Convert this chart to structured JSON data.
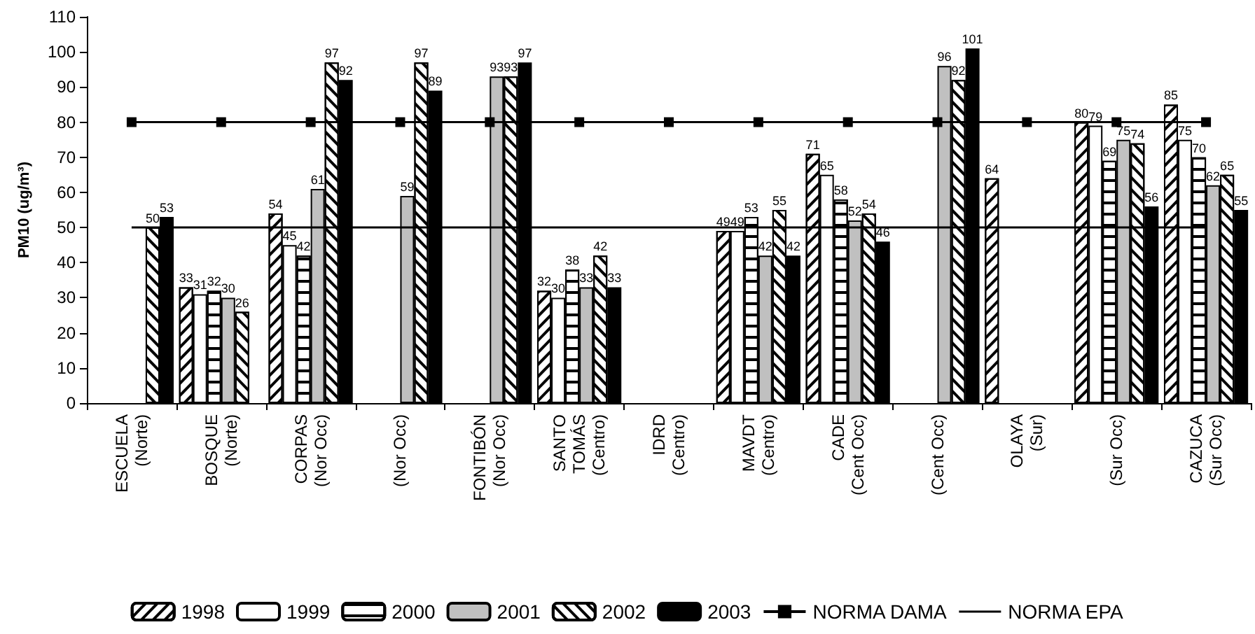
{
  "chart_data": {
    "type": "bar",
    "ylabel": "PM10 (ug/m³)",
    "categories": [
      "ESCUELA\n(Norte)",
      "BOSQUE\n(Norte)",
      "CORPAS\n(Nor Occ)",
      "(Nor Occ)",
      "FONTIBÓN\n(Nor Occ)",
      "SANTO\nTOMÁS\n(Centro)",
      "IDRD\n(Centro)",
      "MAVDT\n(Centro)",
      "CADE\n(Cent Occ)",
      "(Cent Occ)",
      "OLAYA\n(Sur)",
      "(Sur Occ)",
      "CAZUCA\n(Sur Occ)"
    ],
    "series": [
      {
        "name": "1998",
        "color": "#ffffff",
        "values": [
          null,
          33,
          54,
          null,
          null,
          32,
          null,
          49,
          71,
          null,
          64,
          80,
          85
        ],
        "value_labels": [
          null,
          "33",
          "54",
          null,
          null,
          "32",
          null,
          "49",
          "71",
          null,
          "64",
          "80",
          "85"
        ]
      },
      {
        "name": "1999",
        "color": "#ffffff",
        "values": [
          null,
          31,
          45,
          null,
          null,
          30,
          null,
          49,
          65,
          null,
          null,
          79,
          75
        ],
        "value_labels": [
          null,
          "31",
          "45",
          null,
          null,
          "30",
          null,
          "49",
          "65",
          null,
          null,
          "79",
          "75"
        ]
      },
      {
        "name": "2000",
        "color": "#ffffff",
        "values": [
          null,
          32,
          42,
          null,
          null,
          38,
          null,
          53,
          58,
          null,
          null,
          69,
          70
        ],
        "value_labels": [
          null,
          "32",
          "42",
          null,
          null,
          "38",
          null,
          "53",
          "58",
          null,
          null,
          "69",
          "70"
        ]
      },
      {
        "name": "2001",
        "color": "#c0c0c0",
        "values": [
          null,
          30,
          61,
          59,
          93,
          33,
          null,
          42,
          52,
          96,
          null,
          75,
          62
        ],
        "value_labels": [
          null,
          "30",
          "61",
          "59",
          "93",
          "33",
          null,
          "42",
          "52",
          "96",
          null,
          "75",
          "62"
        ]
      },
      {
        "name": "2002",
        "color": "#ffffff",
        "values": [
          50,
          26,
          97,
          97,
          93,
          42,
          null,
          55,
          54,
          92,
          null,
          74,
          65
        ],
        "value_labels": [
          "50",
          "26",
          "97",
          "97",
          "93",
          "42",
          null,
          "55",
          "54",
          "92",
          null,
          "74",
          "65"
        ]
      },
      {
        "name": "2003",
        "color": "#000000",
        "values": [
          53,
          null,
          92,
          89,
          97,
          33,
          null,
          42,
          46,
          101,
          null,
          56,
          55
        ],
        "value_labels": [
          "53",
          null,
          "92",
          "89",
          "97",
          "33",
          null,
          "42",
          "46",
          "101",
          null,
          "56",
          "55"
        ]
      },
      {
        "name": "NORMA DAMA",
        "type": "line",
        "color": "#000000",
        "marker": "square",
        "values": [
          80,
          80,
          80,
          80,
          80,
          80,
          80,
          80,
          80,
          80,
          80,
          80,
          80
        ]
      },
      {
        "name": "NORMA EPA",
        "type": "line",
        "color": "#000000",
        "marker": "none",
        "values": [
          50,
          50,
          50,
          50,
          50,
          50,
          50,
          50,
          50,
          50,
          50,
          50,
          50
        ]
      }
    ],
    "ylim": [
      0,
      110
    ],
    "yticks": [
      0,
      10,
      20,
      30,
      40,
      50,
      60,
      70,
      80,
      90,
      100,
      110
    ],
    "grid": false,
    "legend": "bottom"
  }
}
